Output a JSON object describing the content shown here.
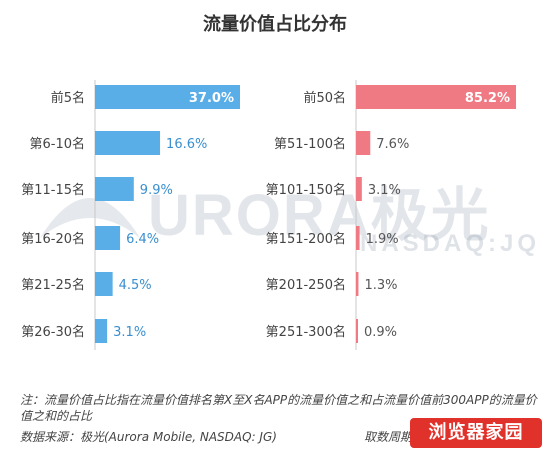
{
  "title": "流量价值占比分布",
  "watermark": {
    "logo": "URORA极光",
    "sub": "NASDAQ:JQ"
  },
  "colors": {
    "left": "#5aaee8",
    "right": "#f07a83",
    "left_text": "#3a8fcf",
    "right_text": "#555555"
  },
  "chart_data": [
    {
      "type": "bar",
      "orientation": "horizontal",
      "categories": [
        "前5名",
        "第6-10名",
        "第11-15名",
        "第16-20名",
        "第21-25名",
        "第26-30名"
      ],
      "values": [
        37.0,
        16.6,
        9.9,
        6.4,
        4.5,
        3.1
      ],
      "value_labels": [
        "37.0%",
        "16.6%",
        "9.9%",
        "6.4%",
        "4.5%",
        "3.1%"
      ],
      "title": "",
      "xlabel": "",
      "ylabel": ""
    },
    {
      "type": "bar",
      "orientation": "horizontal",
      "categories": [
        "前50名",
        "第51-100名",
        "第101-150名",
        "第151-200名",
        "第201-250名",
        "第251-300名"
      ],
      "values": [
        85.2,
        7.6,
        3.1,
        1.9,
        1.3,
        0.9
      ],
      "value_labels": [
        "85.2%",
        "7.6%",
        "3.1%",
        "1.9%",
        "1.3%",
        "0.9%"
      ],
      "title": "",
      "xlabel": "",
      "ylabel": ""
    }
  ],
  "note": "注：流量价值占比指在流量价值排名第X至X名APP的流量价值之和占流量价值前300APP的流量价值之和的占比",
  "source": "数据来源：极光(Aurora Mobile, NASDAQ: JG)",
  "date": "取数周期：2019.06",
  "badge": "浏览器家园"
}
